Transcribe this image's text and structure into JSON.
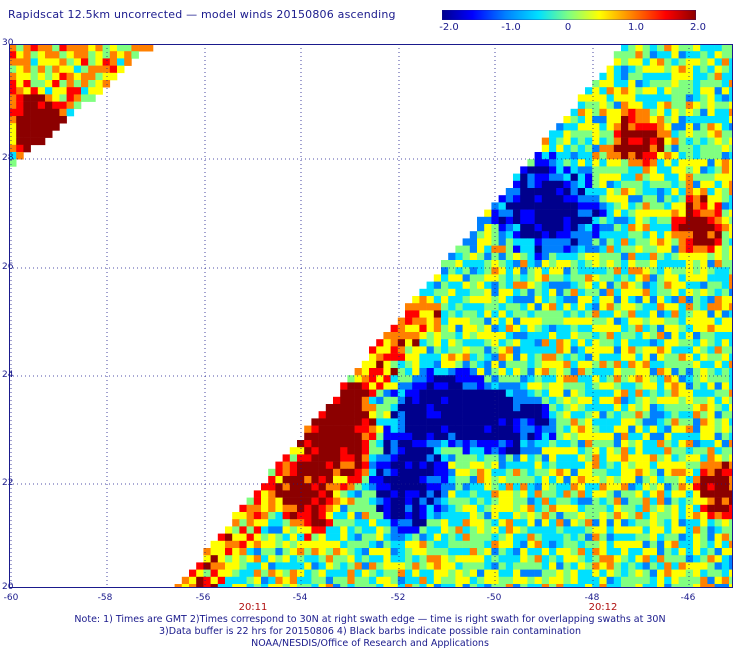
{
  "title": "Rapidscat 12.5km uncorrected — model winds 20150806 ascending",
  "colorbar": {
    "min": -2.0,
    "max": 2.0,
    "ticks": [
      {
        "label": "-2.0",
        "value": -2.0
      },
      {
        "label": "-1.0",
        "value": -1.0
      },
      {
        "label": "0",
        "value": 0
      },
      {
        "label": "1.0",
        "value": 1.0
      },
      {
        "label": "2.0",
        "value": 2.0
      }
    ],
    "colors": [
      "#00008c",
      "#0000ff",
      "#0080ff",
      "#00e0ff",
      "#80ff80",
      "#ffff00",
      "#ff8000",
      "#ff0000",
      "#8c0000"
    ]
  },
  "map": {
    "lon_range": [
      -60,
      -45
    ],
    "lat_range": [
      20,
      30
    ],
    "x_ticks": [
      "-60",
      "-58",
      "-56",
      "-54",
      "-52",
      "-50",
      "-48",
      "-46"
    ],
    "y_ticks": [
      "30",
      "28",
      "26",
      "24",
      "22",
      "20"
    ],
    "time_labels": [
      {
        "label": "20:11",
        "lon": -55.5
      },
      {
        "label": "20:12",
        "lon": -47.6
      }
    ]
  },
  "notes": [
    "Note: 1) Times are GMT 2)Times correspond to 30N at right swath edge — time is right swath for overlapping swaths at 30N",
    "3)Data buffer is 22 hrs for 20150806 4) Black barbs indicate possible rain contamination",
    "NOAA/NESDIS/Office of Research and Applications"
  ]
}
